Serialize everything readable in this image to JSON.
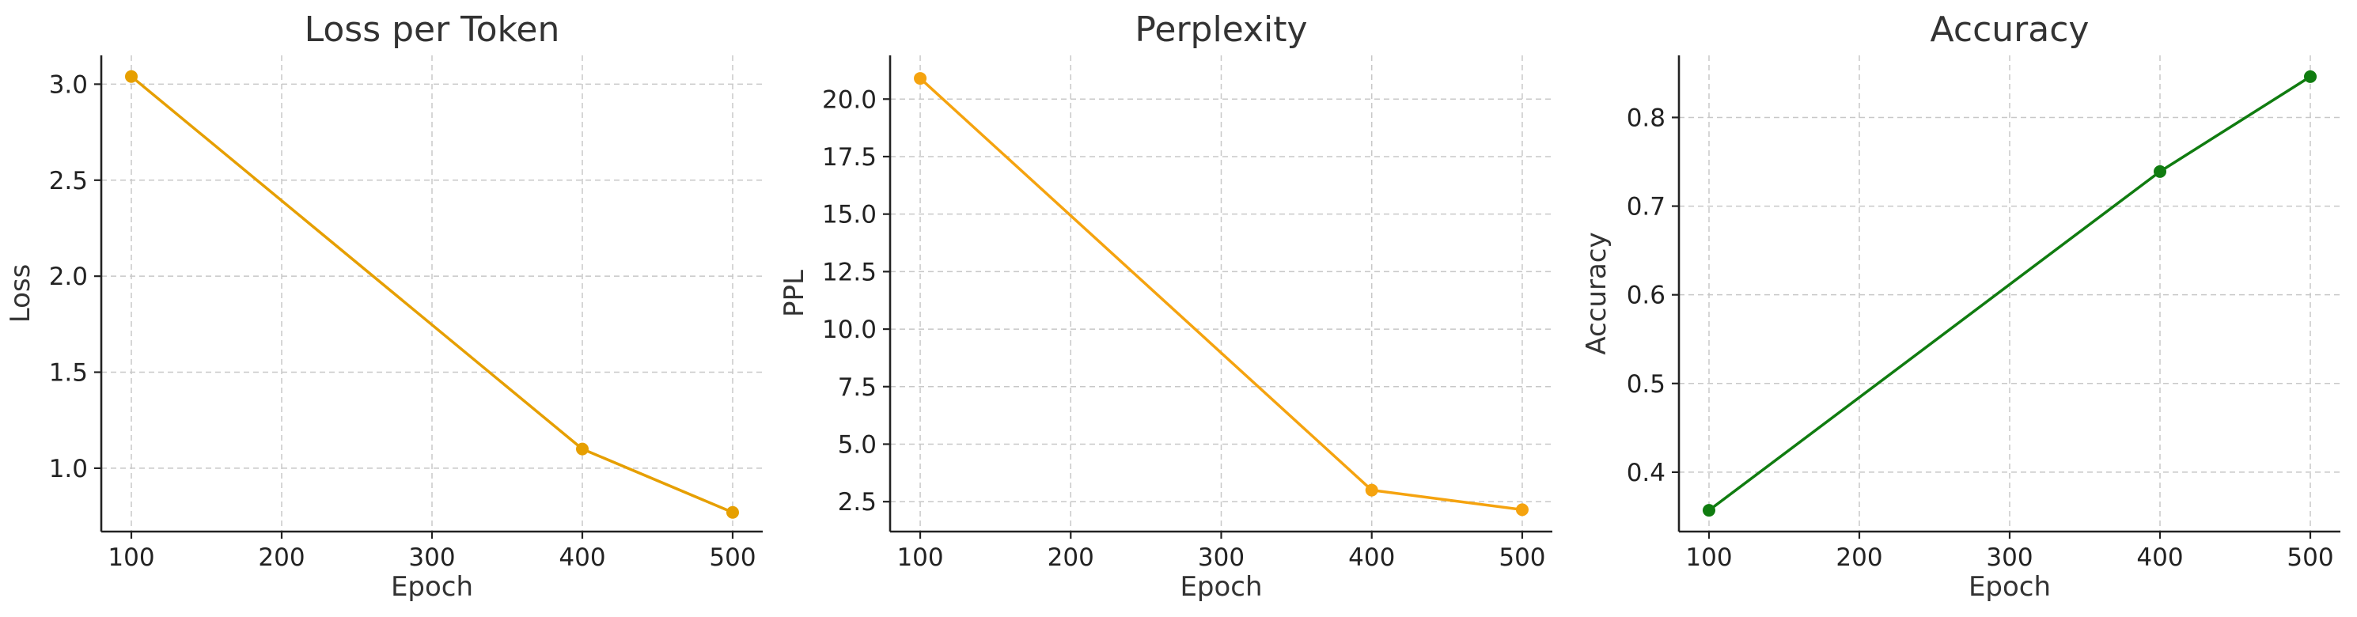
{
  "chart_data": [
    {
      "type": "line",
      "title": "Loss per Token",
      "xlabel": "Epoch",
      "ylabel": "Loss",
      "x": [
        100,
        400,
        500
      ],
      "series": [
        {
          "values": [
            3.04,
            1.1,
            0.77
          ],
          "color": "#E69F00"
        }
      ],
      "xlim": [
        80,
        520
      ],
      "ylim": [
        0.67,
        3.15
      ],
      "xticks": [
        100,
        200,
        300,
        400,
        500
      ],
      "xtick_labels": [
        "100",
        "200",
        "300",
        "400",
        "500"
      ],
      "yticks": [
        1.0,
        1.5,
        2.0,
        2.5,
        3.0
      ],
      "ytick_labels": [
        "1.0",
        "1.5",
        "2.0",
        "2.5",
        "3.0"
      ],
      "grid": true
    },
    {
      "type": "line",
      "title": "Perplexity",
      "xlabel": "Epoch",
      "ylabel": "PPL",
      "x": [
        100,
        400,
        500
      ],
      "series": [
        {
          "values": [
            20.9,
            3.0,
            2.15
          ],
          "color": "#F5A30F"
        }
      ],
      "xlim": [
        80,
        520
      ],
      "ylim": [
        1.2,
        21.9
      ],
      "xticks": [
        100,
        200,
        300,
        400,
        500
      ],
      "xtick_labels": [
        "100",
        "200",
        "300",
        "400",
        "500"
      ],
      "yticks": [
        2.5,
        5.0,
        7.5,
        10.0,
        12.5,
        15.0,
        17.5,
        20.0
      ],
      "ytick_labels": [
        "2.5",
        "5.0",
        "7.5",
        "10.0",
        "12.5",
        "15.0",
        "17.5",
        "20.0"
      ],
      "grid": true
    },
    {
      "type": "line",
      "title": "Accuracy",
      "xlabel": "Epoch",
      "ylabel": "Accuracy",
      "x": [
        100,
        400,
        500
      ],
      "series": [
        {
          "values": [
            0.357,
            0.739,
            0.846
          ],
          "color": "#107C10"
        }
      ],
      "xlim": [
        80,
        520
      ],
      "ylim": [
        0.333,
        0.87
      ],
      "xticks": [
        100,
        200,
        300,
        400,
        500
      ],
      "xtick_labels": [
        "100",
        "200",
        "300",
        "400",
        "500"
      ],
      "yticks": [
        0.4,
        0.5,
        0.6,
        0.7,
        0.8
      ],
      "ytick_labels": [
        "0.4",
        "0.5",
        "0.6",
        "0.7",
        "0.8"
      ],
      "grid": true
    }
  ]
}
